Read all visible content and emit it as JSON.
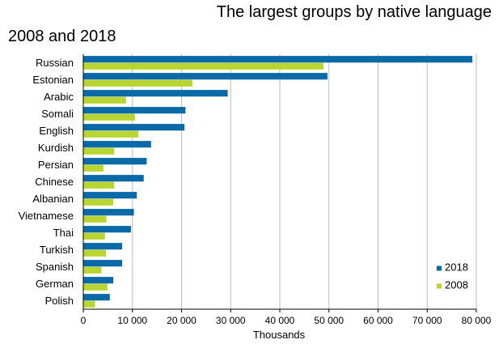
{
  "chart_data": {
    "type": "bar",
    "orientation": "horizontal",
    "title": "The largest groups by native language",
    "subtitle": "2008 and 2018",
    "xlabel": "Thousands",
    "ylabel": "",
    "xlim": [
      0,
      80000
    ],
    "x_ticks": [
      0,
      10000,
      20000,
      30000,
      40000,
      50000,
      60000,
      70000,
      80000
    ],
    "x_tick_labels": [
      "0",
      "10 000",
      "20 000",
      "30 000",
      "40 000",
      "50 000",
      "60 000",
      "70 000",
      "80 000"
    ],
    "grid": "vertical",
    "legend_position": "bottom-right",
    "categories": [
      "Russian",
      "Estonian",
      "Arabic",
      "Somali",
      "English",
      "Kurdish",
      "Persian",
      "Chinese",
      "Albanian",
      "Vietnamese",
      "Thai",
      "Turkish",
      "Spanish",
      "German",
      "Polish"
    ],
    "series": [
      {
        "name": "2018",
        "color": "#0a6aa8",
        "values": [
          79200,
          49700,
          29400,
          20800,
          20600,
          13800,
          12900,
          12300,
          10900,
          10300,
          9700,
          7900,
          7900,
          6100,
          5400
        ]
      },
      {
        "name": "2008",
        "color": "#b9d532",
        "values": [
          48900,
          22200,
          8700,
          10500,
          11200,
          6300,
          4100,
          6300,
          6100,
          4700,
          4400,
          4600,
          3700,
          4900,
          2400
        ]
      }
    ]
  }
}
